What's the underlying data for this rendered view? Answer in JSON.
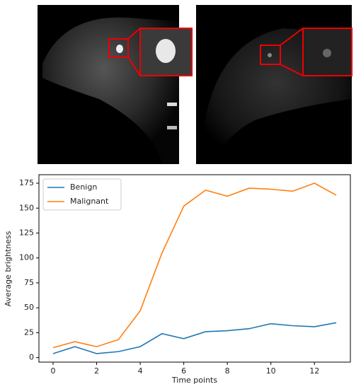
{
  "chart_data": {
    "type": "line",
    "x": [
      0,
      1,
      2,
      3,
      4,
      5,
      6,
      7,
      8,
      9,
      10,
      11,
      12,
      13
    ],
    "series": [
      {
        "name": "Benign",
        "color": "#1f77b4",
        "values": [
          4,
          11,
          4,
          6,
          11,
          24,
          19,
          26,
          27,
          29,
          34,
          32,
          31,
          35
        ]
      },
      {
        "name": "Malignant",
        "color": "#ff7f0e",
        "values": [
          10,
          16,
          11,
          18,
          47,
          105,
          152,
          168,
          162,
          170,
          169,
          167,
          175,
          163
        ]
      }
    ],
    "xlabel": "Time points",
    "ylabel": "Average brightness",
    "xlim": [
      -0.65,
      13.65
    ],
    "ylim": [
      -4.55,
      183.55
    ],
    "xticks": [
      0,
      2,
      4,
      6,
      8,
      10,
      12
    ],
    "yticks": [
      0,
      25,
      50,
      75,
      100,
      125,
      150,
      175
    ],
    "legend": "upper left"
  }
}
